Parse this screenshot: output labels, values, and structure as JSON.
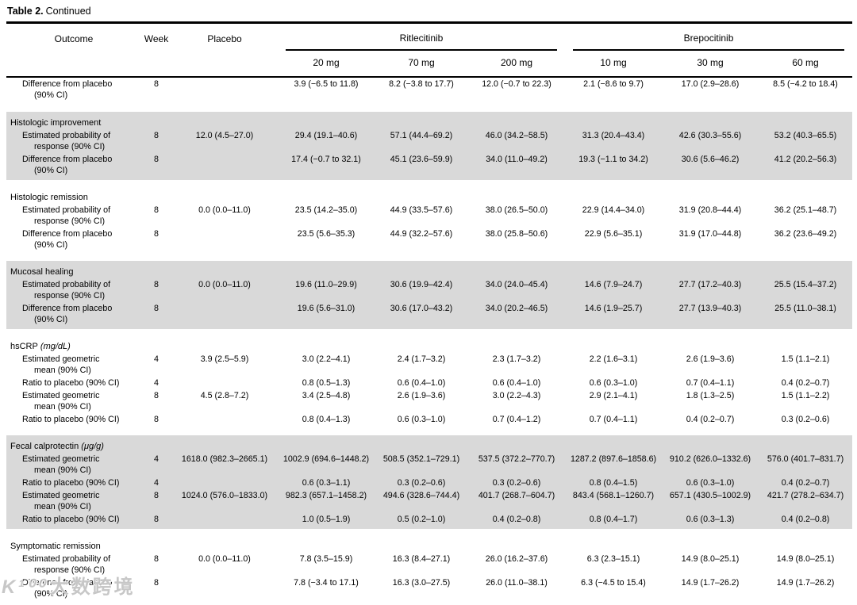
{
  "title": {
    "bold": "Table 2.",
    "rest": "Continued"
  },
  "header": {
    "outcome": "Outcome",
    "week": "Week",
    "placebo": "Placebo",
    "groups": [
      {
        "label": "Ritlecitinib",
        "doses": [
          "20 mg",
          "70 mg",
          "200 mg"
        ]
      },
      {
        "label": "Brepocitinib",
        "doses": [
          "10 mg",
          "30 mg",
          "60 mg"
        ]
      }
    ]
  },
  "sections": [
    {
      "label": "",
      "unit": "",
      "shaded": false,
      "rows": [
        {
          "label": "Difference from placebo\n(90% CI)",
          "week": "8",
          "values": [
            "",
            "3.9 (−6.5 to 11.8)",
            "8.2 (−3.8 to 17.7)",
            "12.0 (−0.7 to 22.3)",
            "2.1 (−8.6 to 9.7)",
            "17.0 (2.9–28.6)",
            "8.5 (−4.2 to 18.4)"
          ]
        }
      ]
    },
    {
      "label": "Histologic improvement",
      "unit": "",
      "shaded": true,
      "rows": [
        {
          "label": "Estimated probability of\nresponse (90% CI)",
          "week": "8",
          "values": [
            "12.0 (4.5–27.0)",
            "29.4 (19.1–40.6)",
            "57.1 (44.4–69.2)",
            "46.0 (34.2–58.5)",
            "31.3 (20.4–43.4)",
            "42.6 (30.3–55.6)",
            "53.2 (40.3–65.5)"
          ]
        },
        {
          "label": "Difference from placebo\n(90% CI)",
          "week": "8",
          "values": [
            "",
            "17.4 (−0.7 to 32.1)",
            "45.1 (23.6–59.9)",
            "34.0 (11.0–49.2)",
            "19.3 (−1.1 to 34.2)",
            "30.6 (5.6–46.2)",
            "41.2 (20.2–56.3)"
          ]
        }
      ]
    },
    {
      "label": "Histologic remission",
      "unit": "",
      "shaded": false,
      "rows": [
        {
          "label": "Estimated probability of\nresponse (90% CI)",
          "week": "8",
          "values": [
            "0.0 (0.0–11.0)",
            "23.5 (14.2–35.0)",
            "44.9 (33.5–57.6)",
            "38.0 (26.5–50.0)",
            "22.9 (14.4–34.0)",
            "31.9 (20.8–44.4)",
            "36.2 (25.1–48.7)"
          ]
        },
        {
          "label": "Difference from placebo\n(90% CI)",
          "week": "8",
          "values": [
            "",
            "23.5 (5.6–35.3)",
            "44.9 (32.2–57.6)",
            "38.0 (25.8–50.6)",
            "22.9 (5.6–35.1)",
            "31.9 (17.0–44.8)",
            "36.2 (23.6–49.2)"
          ]
        }
      ]
    },
    {
      "label": "Mucosal healing",
      "unit": "",
      "shaded": true,
      "rows": [
        {
          "label": "Estimated probability of\nresponse (90% CI)",
          "week": "8",
          "values": [
            "0.0 (0.0–11.0)",
            "19.6 (11.0–29.9)",
            "30.6 (19.9–42.4)",
            "34.0 (24.0–45.4)",
            "14.6 (7.9–24.7)",
            "27.7 (17.2–40.3)",
            "25.5 (15.4–37.2)"
          ]
        },
        {
          "label": "Difference from placebo\n(90% CI)",
          "week": "8",
          "values": [
            "",
            "19.6 (5.6–31.0)",
            "30.6 (17.0–43.2)",
            "34.0 (20.2–46.5)",
            "14.6 (1.9–25.7)",
            "27.7 (13.9–40.3)",
            "25.5 (11.0–38.1)"
          ]
        }
      ]
    },
    {
      "label": "hsCRP",
      "unit": "(mg/dL)",
      "shaded": false,
      "rows": [
        {
          "label": "Estimated geometric\nmean (90% CI)",
          "week": "4",
          "values": [
            "3.9 (2.5–5.9)",
            "3.0 (2.2–4.1)",
            "2.4 (1.7–3.2)",
            "2.3 (1.7–3.2)",
            "2.2 (1.6–3.1)",
            "2.6 (1.9–3.6)",
            "1.5 (1.1–2.1)"
          ]
        },
        {
          "label": "Ratio to placebo (90% CI)",
          "week": "4",
          "values": [
            "",
            "0.8 (0.5–1.3)",
            "0.6 (0.4–1.0)",
            "0.6 (0.4–1.0)",
            "0.6 (0.3–1.0)",
            "0.7 (0.4–1.1)",
            "0.4 (0.2–0.7)"
          ]
        },
        {
          "label": "Estimated geometric\nmean (90% CI)",
          "week": "8",
          "values": [
            "4.5 (2.8–7.2)",
            "3.4 (2.5–4.8)",
            "2.6 (1.9–3.6)",
            "3.0 (2.2–4.3)",
            "2.9 (2.1–4.1)",
            "1.8 (1.3–2.5)",
            "1.5 (1.1–2.2)"
          ]
        },
        {
          "label": "Ratio to placebo (90% CI)",
          "week": "8",
          "values": [
            "",
            "0.8 (0.4–1.3)",
            "0.6 (0.3–1.0)",
            "0.7 (0.4–1.2)",
            "0.7 (0.4–1.1)",
            "0.4 (0.2–0.7)",
            "0.3 (0.2–0.6)"
          ]
        }
      ]
    },
    {
      "label": "Fecal calprotectin",
      "unit": "(μg/g)",
      "shaded": true,
      "rows": [
        {
          "label": "Estimated geometric\nmean (90% CI)",
          "week": "4",
          "values": [
            "1618.0 (982.3–2665.1)",
            "1002.9 (694.6–1448.2)",
            "508.5 (352.1–729.1)",
            "537.5 (372.2–770.7)",
            "1287.2 (897.6–1858.6)",
            "910.2 (626.0–1332.6)",
            "576.0 (401.7–831.7)"
          ]
        },
        {
          "label": "Ratio to placebo (90% CI)",
          "week": "4",
          "values": [
            "",
            "0.6 (0.3–1.1)",
            "0.3 (0.2–0.6)",
            "0.3 (0.2–0.6)",
            "0.8 (0.4–1.5)",
            "0.6 (0.3–1.0)",
            "0.4 (0.2–0.7)"
          ]
        },
        {
          "label": "Estimated geometric\nmean (90% CI)",
          "week": "8",
          "values": [
            "1024.0 (576.0–1833.0)",
            "982.3 (657.1–1458.2)",
            "494.6 (328.6–744.4)",
            "401.7 (268.7–604.7)",
            "843.4 (568.1–1260.7)",
            "657.1 (430.5–1002.9)",
            "421.7 (278.2–634.7)"
          ]
        },
        {
          "label": "Ratio to placebo (90% CI)",
          "week": "8",
          "values": [
            "",
            "1.0 (0.5–1.9)",
            "0.5 (0.2–1.0)",
            "0.4 (0.2–0.8)",
            "0.8 (0.4–1.7)",
            "0.6 (0.3–1.3)",
            "0.4 (0.2–0.8)"
          ]
        }
      ]
    },
    {
      "label": "Symptomatic remission",
      "unit": "",
      "shaded": false,
      "rows": [
        {
          "label": "Estimated probability of\nresponse (90% CI)",
          "week": "8",
          "values": [
            "0.0 (0.0–11.0)",
            "7.8 (3.5–15.9)",
            "16.3 (8.4–27.1)",
            "26.0 (16.2–37.6)",
            "6.3 (2.3–15.1)",
            "14.9 (8.0–25.1)",
            "14.9 (8.0–25.1)"
          ]
        },
        {
          "label": "Difference from placebo\n(90% CI)",
          "week": "8",
          "values": [
            "",
            "7.8 (−3.4 to 17.1)",
            "16.3 (3.0–27.5)",
            "26.0 (11.0–38.1)",
            "6.3 (−4.5 to 15.4)",
            "14.9 (1.7–26.2)",
            "14.9 (1.7–26.2)"
          ]
        }
      ]
    }
  ],
  "watermark": {
    "logo": "K¹⁰⁰",
    "text": "大数跨境"
  }
}
